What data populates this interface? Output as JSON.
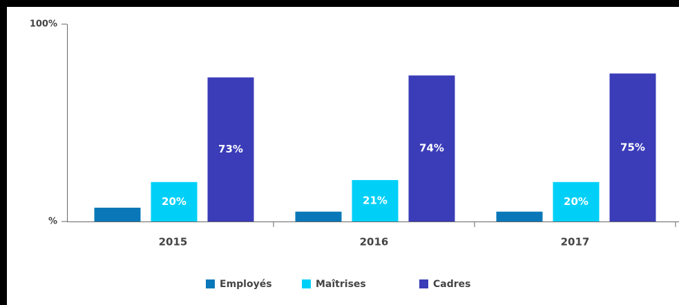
{
  "chart_data": {
    "type": "bar",
    "categories": [
      "2015",
      "2016",
      "2017"
    ],
    "series": [
      {
        "name": "Employés",
        "color": "#0a78b8",
        "values": [
          7,
          5,
          5
        ]
      },
      {
        "name": "Maîtrises",
        "color": "#00d0f8",
        "values": [
          20,
          21,
          20
        ],
        "value_labels": [
          "20%",
          "21%",
          "20%"
        ]
      },
      {
        "name": "Cadres",
        "color": "#3a3cb8",
        "values": [
          73,
          74,
          75
        ],
        "value_labels": [
          "73%",
          "74%",
          "75%"
        ]
      }
    ],
    "ylim": [
      0,
      100
    ],
    "yticks": [
      {
        "value": 0,
        "label": "%"
      },
      {
        "value": 100,
        "label": "100%"
      }
    ],
    "legend": "bottom"
  }
}
